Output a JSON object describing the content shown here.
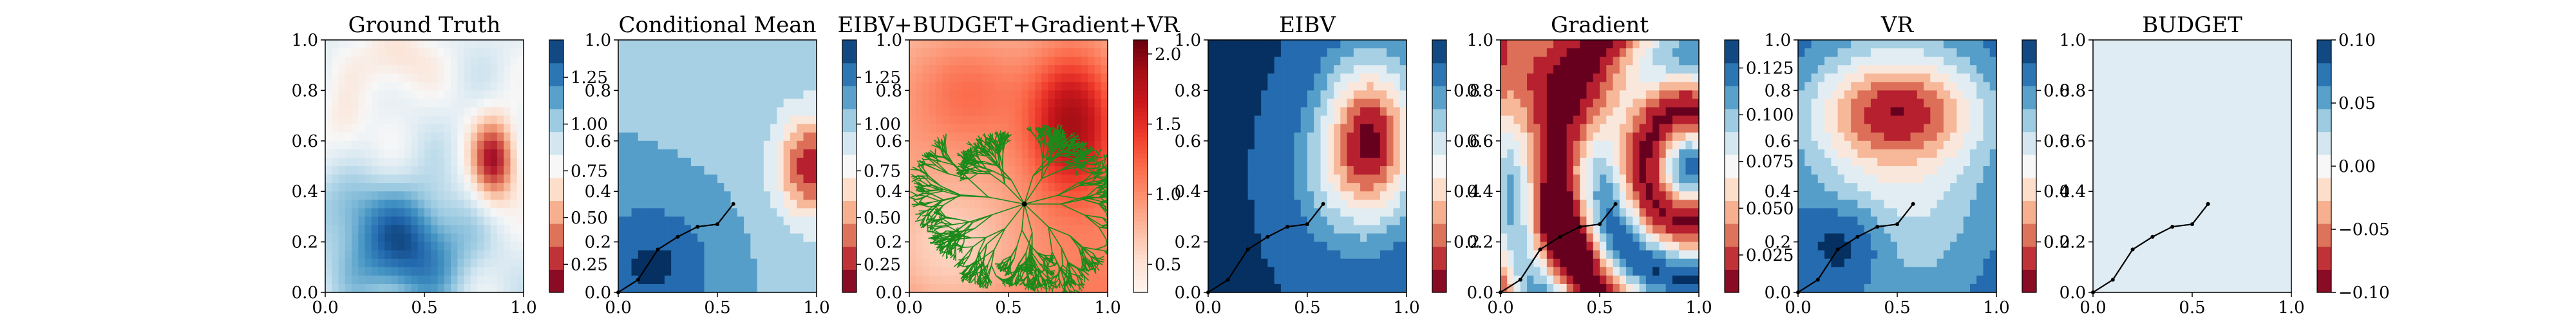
{
  "chart_data": [
    {
      "type": "heatmap",
      "title": "Ground Truth",
      "xlim": [
        0,
        1
      ],
      "ylim": [
        0,
        1
      ],
      "xticks": [
        "0.0",
        "0.5",
        "1.0"
      ],
      "yticks": [
        "0.0",
        "0.2",
        "0.4",
        "0.6",
        "0.8",
        "1.0"
      ],
      "colorbar": {
        "range": [
          0.1,
          1.45
        ],
        "ticks": [
          0.25,
          0.5,
          0.75,
          1.0,
          1.25
        ],
        "tick_labels": [
          "0.25",
          "0.50",
          "0.75",
          "1.00",
          "1.25"
        ]
      },
      "colormap": "RdBu",
      "path": []
    },
    {
      "type": "heatmap",
      "title": "Conditional Mean",
      "xlim": [
        0,
        1
      ],
      "ylim": [
        0,
        1
      ],
      "xticks": [
        "0.0",
        "0.5",
        "1.0"
      ],
      "yticks": [
        "0.0",
        "0.2",
        "0.4",
        "0.6",
        "0.8",
        "1.0"
      ],
      "colorbar": {
        "range": [
          0.1,
          1.45
        ],
        "ticks": [
          0.25,
          0.5,
          0.75,
          1.0,
          1.25
        ],
        "tick_labels": [
          "0.25",
          "0.50",
          "0.75",
          "1.00",
          "1.25"
        ]
      },
      "colormap": "RdBu",
      "path": [
        [
          0.0,
          0.0
        ],
        [
          0.1,
          0.05
        ],
        [
          0.2,
          0.17
        ],
        [
          0.3,
          0.22
        ],
        [
          0.4,
          0.26
        ],
        [
          0.5,
          0.27
        ],
        [
          0.58,
          0.35
        ]
      ]
    },
    {
      "type": "heatmap",
      "title": "EIBV+BUDGET+Gradient+VR",
      "xlim": [
        0,
        1
      ],
      "ylim": [
        0,
        1
      ],
      "xticks": [
        "0.0",
        "0.5",
        "1.0"
      ],
      "yticks": [
        "0.0",
        "0.2",
        "0.4",
        "0.6",
        "0.8",
        "1.0"
      ],
      "colorbar": {
        "range": [
          0.3,
          2.1
        ],
        "ticks": [
          0.5,
          1.0,
          1.5,
          2.0
        ],
        "tick_labels": [
          "0.5",
          "1.0",
          "1.5",
          "2.0"
        ]
      },
      "colormap": "Reds",
      "tree_origin": [
        0.58,
        0.35
      ],
      "path": []
    },
    {
      "type": "heatmap",
      "title": "EIBV",
      "xlim": [
        0,
        1
      ],
      "ylim": [
        0,
        1
      ],
      "xticks": [
        "0.0",
        "0.5",
        "1.0"
      ],
      "yticks": [
        "0.0",
        "0.2",
        "0.4",
        "0.6",
        "0.8",
        "1.0"
      ],
      "colorbar": {
        "range": [
          0,
          1.0
        ],
        "ticks": [
          0.2,
          0.4,
          0.6,
          0.8
        ],
        "tick_labels": [
          "0.2",
          "0.4",
          "0.6",
          "0.8"
        ]
      },
      "colormap": "RdBu",
      "path": [
        [
          0.0,
          0.0
        ],
        [
          0.1,
          0.05
        ],
        [
          0.2,
          0.17
        ],
        [
          0.3,
          0.22
        ],
        [
          0.4,
          0.26
        ],
        [
          0.5,
          0.27
        ],
        [
          0.58,
          0.35
        ]
      ]
    },
    {
      "type": "heatmap",
      "title": "Gradient",
      "xlim": [
        0,
        1
      ],
      "ylim": [
        0,
        1
      ],
      "xticks": [
        "0.0",
        "0.5",
        "1.0"
      ],
      "yticks": [
        "0.0",
        "0.2",
        "0.4",
        "0.6",
        "0.8",
        "1.0"
      ],
      "colorbar": {
        "range": [
          0.005,
          0.14
        ],
        "ticks": [
          0.025,
          0.05,
          0.075,
          0.1,
          0.125
        ],
        "tick_labels": [
          "0.025",
          "0.050",
          "0.075",
          "0.100",
          "0.125"
        ]
      },
      "colormap": "RdBu",
      "path": [
        [
          0.0,
          0.0
        ],
        [
          0.1,
          0.05
        ],
        [
          0.2,
          0.17
        ],
        [
          0.3,
          0.22
        ],
        [
          0.4,
          0.26
        ],
        [
          0.5,
          0.27
        ],
        [
          0.58,
          0.35
        ]
      ]
    },
    {
      "type": "heatmap",
      "title": "VR",
      "xlim": [
        0,
        1
      ],
      "ylim": [
        0,
        1
      ],
      "xticks": [
        "0.0",
        "0.5",
        "1.0"
      ],
      "yticks": [
        "0.0",
        "0.2",
        "0.4",
        "0.6",
        "0.8",
        "1.0"
      ],
      "colorbar": {
        "range": [
          0,
          1.0
        ],
        "ticks": [
          0.2,
          0.4,
          0.6,
          0.8
        ],
        "tick_labels": [
          "0.2",
          "0.4",
          "0.6",
          "0.8"
        ]
      },
      "colormap": "RdBu",
      "path": [
        [
          0.0,
          0.0
        ],
        [
          0.1,
          0.05
        ],
        [
          0.2,
          0.17
        ],
        [
          0.3,
          0.22
        ],
        [
          0.4,
          0.26
        ],
        [
          0.5,
          0.27
        ],
        [
          0.58,
          0.35
        ]
      ]
    },
    {
      "type": "heatmap",
      "title": "BUDGET",
      "xlim": [
        0,
        1
      ],
      "ylim": [
        0,
        1
      ],
      "xticks": [
        "0.0",
        "0.5",
        "1.0"
      ],
      "yticks": [
        "0.0",
        "0.2",
        "0.4",
        "0.6",
        "0.8",
        "1.0"
      ],
      "colorbar": {
        "range": [
          -0.1,
          0.1
        ],
        "ticks": [
          -0.1,
          -0.05,
          0.0,
          0.05,
          0.1
        ],
        "tick_labels": [
          "−0.10",
          "−0.05",
          "0.00",
          "0.05",
          "0.10"
        ]
      },
      "colormap": "RdBu",
      "path": [
        [
          0.0,
          0.0
        ],
        [
          0.1,
          0.05
        ],
        [
          0.2,
          0.17
        ],
        [
          0.3,
          0.22
        ],
        [
          0.4,
          0.26
        ],
        [
          0.5,
          0.27
        ],
        [
          0.58,
          0.35
        ]
      ]
    }
  ]
}
